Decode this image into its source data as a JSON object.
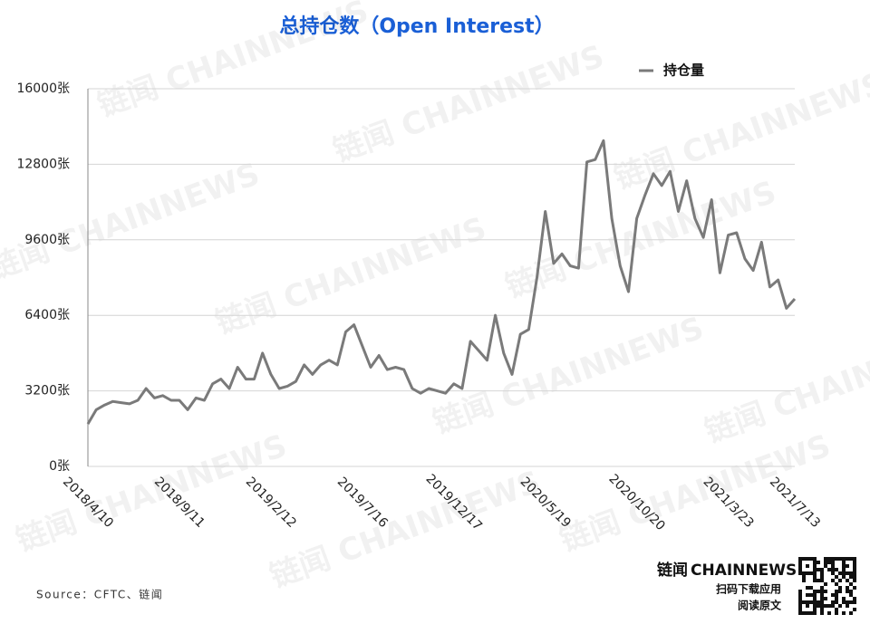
{
  "chart_data": {
    "type": "line",
    "title": "总持仓数（Open Interest）",
    "categories": [
      "2018/4/10",
      null,
      null,
      null,
      null,
      null,
      null,
      null,
      null,
      null,
      null,
      "2018/9/11",
      null,
      null,
      null,
      null,
      null,
      null,
      null,
      null,
      null,
      null,
      "2019/2/12",
      null,
      null,
      null,
      null,
      null,
      null,
      null,
      null,
      null,
      null,
      "2019/7/16",
      null,
      null,
      null,
      null,
      null,
      null,
      null,
      null,
      null,
      null,
      "2019/12/17",
      null,
      null,
      null,
      null,
      null,
      null,
      null,
      null,
      null,
      null,
      "2020/5/19",
      null,
      null,
      null,
      null,
      null,
      null,
      null,
      null,
      null,
      null,
      "2020/10/20",
      null,
      null,
      null,
      null,
      null,
      null,
      null,
      null,
      null,
      null,
      "2021/3/23",
      null,
      null,
      null,
      null,
      null,
      null,
      null,
      "2021/7/13"
    ],
    "series": [
      {
        "name": "持仓量",
        "color": "#7a7a7a",
        "values": [
          1800,
          2400,
          2600,
          2750,
          2700,
          2650,
          2800,
          3300,
          2900,
          3000,
          2800,
          2800,
          2400,
          2900,
          2800,
          3500,
          3700,
          3300,
          4200,
          3700,
          3700,
          4800,
          3900,
          3300,
          3400,
          3600,
          4300,
          3900,
          4300,
          4500,
          4300,
          5700,
          6000,
          5100,
          4200,
          4700,
          4100,
          4200,
          4100,
          3300,
          3100,
          3300,
          3200,
          3100,
          3500,
          3300,
          5300,
          4900,
          4500,
          6400,
          4800,
          3900,
          5600,
          5800,
          8000,
          10800,
          8600,
          9000,
          8500,
          8400,
          12900,
          13000,
          13800,
          10500,
          8500,
          7400,
          10500,
          11500,
          12400,
          11900,
          12500,
          10800,
          12100,
          10500,
          9700,
          11300,
          8200,
          9800,
          9900,
          8800,
          8300,
          9500,
          7600,
          7900,
          6700,
          7100
        ]
      }
    ],
    "ylim": [
      0,
      16000
    ],
    "yticks": [
      {
        "value": 0,
        "label": "0张"
      },
      {
        "value": 3200,
        "label": "3200张"
      },
      {
        "value": 6400,
        "label": "6400张"
      },
      {
        "value": 9600,
        "label": "9600张"
      },
      {
        "value": 12800,
        "label": "12800张"
      },
      {
        "value": 16000,
        "label": "16000张"
      }
    ],
    "grid": true,
    "legend": "top-right",
    "source": "Source：CFTC、链闻"
  },
  "branding": {
    "watermark": "链闻 CHAINNEWS",
    "logo_cn": "链闻",
    "logo_en": "CHAINNEWS",
    "download": "扫码下载应用",
    "read": "阅读原文"
  }
}
